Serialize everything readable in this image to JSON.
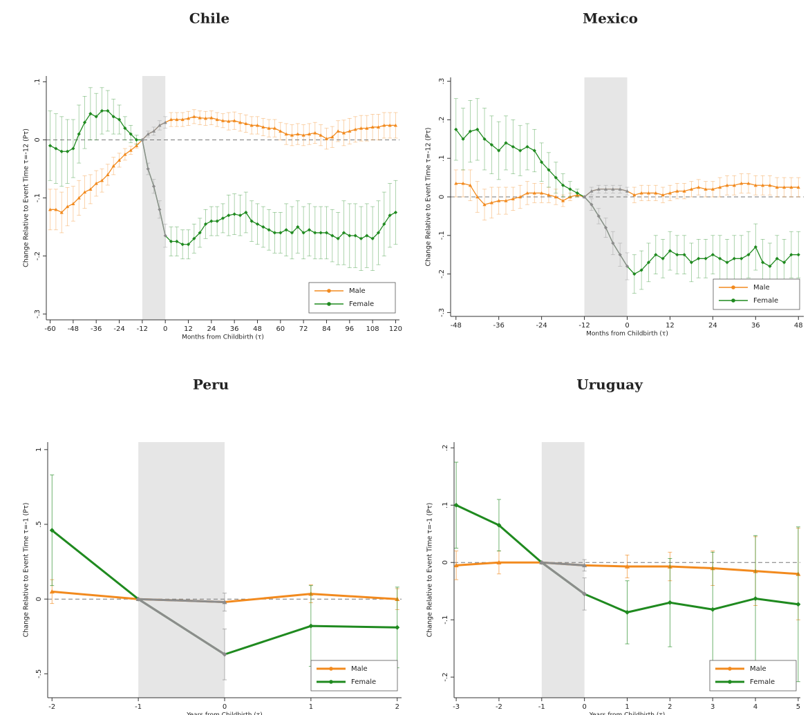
{
  "chart_data": [
    {
      "type": "line",
      "title": "Chile",
      "xlabel": "Months from Childbirth (τ)",
      "ylabel": "Change Relative to Event Time τ=-12 (Pτ)",
      "x": [
        -60,
        -57,
        -54,
        -51,
        -48,
        -45,
        -42,
        -39,
        -36,
        -33,
        -30,
        -27,
        -24,
        -21,
        -18,
        -15,
        -12,
        -9,
        -6,
        -3,
        0,
        3,
        6,
        9,
        12,
        15,
        18,
        21,
        24,
        27,
        30,
        33,
        36,
        39,
        42,
        45,
        48,
        51,
        54,
        57,
        60,
        63,
        66,
        69,
        72,
        75,
        78,
        81,
        84,
        87,
        90,
        93,
        96,
        99,
        102,
        105,
        108,
        111,
        114,
        117,
        120
      ],
      "series": [
        {
          "name": "Male",
          "color": "#f28a1e",
          "marker": "triangle",
          "values": [
            -0.12,
            -0.12,
            -0.125,
            -0.115,
            -0.11,
            -0.1,
            -0.09,
            -0.085,
            -0.075,
            -0.07,
            -0.06,
            -0.045,
            -0.035,
            -0.025,
            -0.018,
            -0.01,
            0,
            0.01,
            0.015,
            0.025,
            0.03,
            0.035,
            0.035,
            0.035,
            0.037,
            0.04,
            0.038,
            0.037,
            0.038,
            0.035,
            0.033,
            0.032,
            0.033,
            0.03,
            0.028,
            0.025,
            0.025,
            0.022,
            0.02,
            0.02,
            0.015,
            0.01,
            0.008,
            0.01,
            0.008,
            0.01,
            0.012,
            0.008,
            0.002,
            0.005,
            0.015,
            0.012,
            0.015,
            0.018,
            0.02,
            0.02,
            0.022,
            0.022,
            0.025,
            0.025,
            0.025
          ],
          "errors": [
            0.035,
            0.035,
            0.035,
            0.033,
            0.03,
            0.03,
            0.028,
            0.025,
            0.022,
            0.02,
            0.018,
            0.015,
            0.012,
            0.01,
            0.007,
            0.004,
            0,
            0.005,
            0.007,
            0.008,
            0.01,
            0.012,
            0.012,
            0.012,
            0.012,
            0.012,
            0.012,
            0.012,
            0.012,
            0.012,
            0.012,
            0.015,
            0.015,
            0.015,
            0.015,
            0.015,
            0.015,
            0.015,
            0.015,
            0.015,
            0.015,
            0.018,
            0.018,
            0.018,
            0.018,
            0.018,
            0.018,
            0.018,
            0.018,
            0.018,
            0.018,
            0.022,
            0.022,
            0.022,
            0.022,
            0.022,
            0.022,
            0.022,
            0.022,
            0.022,
            0.022
          ]
        },
        {
          "name": "Female",
          "color": "#1f8a1f",
          "marker": "diamond",
          "values": [
            -0.01,
            -0.015,
            -0.02,
            -0.02,
            -0.015,
            0.01,
            0.03,
            0.045,
            0.04,
            0.05,
            0.05,
            0.04,
            0.035,
            0.02,
            0.01,
            0,
            0,
            -0.05,
            -0.08,
            -0.12,
            -0.165,
            -0.175,
            -0.175,
            -0.18,
            -0.18,
            -0.17,
            -0.16,
            -0.145,
            -0.14,
            -0.14,
            -0.135,
            -0.13,
            -0.128,
            -0.13,
            -0.125,
            -0.14,
            -0.145,
            -0.15,
            -0.155,
            -0.16,
            -0.16,
            -0.155,
            -0.16,
            -0.15,
            -0.16,
            -0.155,
            -0.16,
            -0.16,
            -0.16,
            -0.165,
            -0.17,
            -0.16,
            -0.165,
            -0.165,
            -0.17,
            -0.165,
            -0.17,
            -0.16,
            -0.145,
            -0.13,
            -0.125
          ],
          "errors": [
            0.06,
            0.06,
            0.06,
            0.055,
            0.05,
            0.05,
            0.045,
            0.045,
            0.04,
            0.04,
            0.035,
            0.03,
            0.025,
            0.02,
            0.015,
            0.008,
            0,
            0.01,
            0.012,
            0.015,
            0.02,
            0.025,
            0.025,
            0.025,
            0.025,
            0.025,
            0.025,
            0.025,
            0.025,
            0.025,
            0.025,
            0.035,
            0.035,
            0.035,
            0.035,
            0.035,
            0.035,
            0.035,
            0.035,
            0.035,
            0.035,
            0.045,
            0.045,
            0.045,
            0.045,
            0.045,
            0.045,
            0.045,
            0.045,
            0.045,
            0.045,
            0.055,
            0.055,
            0.055,
            0.055,
            0.055,
            0.055,
            0.055,
            0.055,
            0.055,
            0.055
          ]
        }
      ],
      "xlim": [
        -62,
        122
      ],
      "xticks": [
        -60,
        -48,
        -36,
        -24,
        -12,
        0,
        12,
        24,
        36,
        48,
        60,
        72,
        84,
        96,
        108,
        120
      ],
      "ylim": [
        -0.31,
        0.11
      ],
      "yticks": [
        {
          "value": -0.3,
          "label": "-.3"
        },
        {
          "value": -0.2,
          "label": "-.2"
        },
        {
          "value": -0.1,
          "label": "-.1"
        },
        0,
        {
          "value": 0.1,
          "label": ".1"
        }
      ],
      "shade": [
        -12,
        0
      ],
      "shade_color": "#e6e6e6",
      "shade_series_color": "#8c8c8c",
      "hline": 0,
      "legend": "lower right"
    },
    {
      "type": "line",
      "title": "Mexico",
      "xlabel": "Months from Childbirth (τ)",
      "ylabel": "Change Relative to Event Time τ=-12 (Pτ)",
      "x": [
        -48,
        -46,
        -44,
        -42,
        -40,
        -38,
        -36,
        -34,
        -32,
        -30,
        -28,
        -26,
        -24,
        -22,
        -20,
        -18,
        -16,
        -14,
        -12,
        -10,
        -8,
        -6,
        -4,
        -2,
        0,
        2,
        4,
        6,
        8,
        10,
        12,
        14,
        16,
        18,
        20,
        22,
        24,
        26,
        28,
        30,
        32,
        34,
        36,
        38,
        40,
        42,
        44,
        46,
        48
      ],
      "series": [
        {
          "name": "Male",
          "color": "#f28a1e",
          "marker": "triangle",
          "values": [
            0.035,
            0.035,
            0.03,
            0,
            -0.02,
            -0.015,
            -0.01,
            -0.01,
            -0.005,
            0,
            0.01,
            0.01,
            0.01,
            0.005,
            0,
            -0.01,
            0,
            0.005,
            0,
            0.015,
            0.02,
            0.02,
            0.02,
            0.02,
            0.015,
            0.005,
            0.01,
            0.01,
            0.01,
            0.005,
            0.01,
            0.015,
            0.015,
            0.02,
            0.025,
            0.02,
            0.02,
            0.025,
            0.03,
            0.03,
            0.035,
            0.035,
            0.03,
            0.03,
            0.03,
            0.025,
            0.025,
            0.025,
            0.025
          ],
          "errors": [
            0.035,
            0.035,
            0.04,
            0.04,
            0.04,
            0.04,
            0.035,
            0.035,
            0.03,
            0.03,
            0.03,
            0.025,
            0.025,
            0.02,
            0.02,
            0.015,
            0.01,
            0.005,
            0,
            0.01,
            0.01,
            0.01,
            0.01,
            0.01,
            0.01,
            0.02,
            0.02,
            0.02,
            0.02,
            0.02,
            0.02,
            0.02,
            0.02,
            0.02,
            0.02,
            0.02,
            0.02,
            0.025,
            0.025,
            0.025,
            0.025,
            0.025,
            0.025,
            0.025,
            0.025,
            0.025,
            0.025,
            0.025,
            0.025
          ]
        },
        {
          "name": "Female",
          "color": "#1f8a1f",
          "marker": "diamond",
          "values": [
            0.175,
            0.15,
            0.17,
            0.175,
            0.15,
            0.135,
            0.12,
            0.14,
            0.13,
            0.12,
            0.13,
            0.12,
            0.09,
            0.07,
            0.05,
            0.03,
            0.02,
            0.01,
            0,
            -0.02,
            -0.05,
            -0.08,
            -0.12,
            -0.15,
            -0.18,
            -0.2,
            -0.19,
            -0.17,
            -0.15,
            -0.16,
            -0.14,
            -0.15,
            -0.15,
            -0.17,
            -0.16,
            -0.16,
            -0.15,
            -0.16,
            -0.17,
            -0.16,
            -0.16,
            -0.15,
            -0.13,
            -0.17,
            -0.18,
            -0.16,
            -0.17,
            -0.15,
            -0.15
          ],
          "errors": [
            0.08,
            0.08,
            0.08,
            0.08,
            0.08,
            0.075,
            0.075,
            0.07,
            0.07,
            0.065,
            0.06,
            0.055,
            0.05,
            0.045,
            0.04,
            0.03,
            0.02,
            0.01,
            0,
            0.015,
            0.02,
            0.025,
            0.03,
            0.03,
            0.035,
            0.05,
            0.05,
            0.05,
            0.05,
            0.05,
            0.05,
            0.05,
            0.05,
            0.05,
            0.05,
            0.05,
            0.05,
            0.06,
            0.06,
            0.06,
            0.06,
            0.06,
            0.06,
            0.06,
            0.06,
            0.06,
            0.06,
            0.06,
            0.06
          ]
        }
      ],
      "xlim": [
        -49.5,
        49.5
      ],
      "xticks": [
        -48,
        -36,
        -24,
        -12,
        0,
        12,
        24,
        36,
        48
      ],
      "ylim": [
        -0.31,
        0.31
      ],
      "yticks": [
        {
          "value": -0.3,
          "label": "-.3"
        },
        {
          "value": -0.2,
          "label": "-.2"
        },
        {
          "value": -0.1,
          "label": "-.1"
        },
        0,
        {
          "value": 0.1,
          "label": ".1"
        },
        {
          "value": 0.2,
          "label": ".2"
        },
        {
          "value": 0.3,
          "label": ".3"
        }
      ],
      "shade": [
        -12,
        0
      ],
      "shade_color": "#e6e6e6",
      "shade_series_color": "#8c8c8c",
      "hline": 0,
      "legend": "lower right"
    },
    {
      "type": "line",
      "title": "Peru",
      "xlabel": "Years from Childbirth (τ)",
      "ylabel": "Change Relative to Event Time τ=-1 (Pτ)",
      "x": [
        -2,
        -1,
        0,
        1,
        2
      ],
      "series": [
        {
          "name": "Male",
          "color": "#f28a1e",
          "marker": "triangle",
          "values": [
            0.05,
            0,
            -0.02,
            0.035,
            0
          ],
          "errors": [
            0.08,
            0,
            0.06,
            0.06,
            0.07
          ]
        },
        {
          "name": "Female",
          "color": "#1f8a1f",
          "marker": "diamond",
          "values": [
            0.46,
            0,
            -0.37,
            -0.18,
            -0.19
          ],
          "errors": [
            0.37,
            0,
            0.17,
            0.27,
            0.27
          ]
        }
      ],
      "xlim": [
        -2.05,
        2.05
      ],
      "xticks": [
        -2,
        -1,
        0,
        1,
        2
      ],
      "ylim": [
        -0.66,
        1.05
      ],
      "yticks": [
        {
          "value": -0.5,
          "label": "-.5"
        },
        0,
        {
          "value": 0.5,
          "label": ".5"
        },
        1
      ],
      "shade": [
        -1,
        0
      ],
      "shade_color": "#e6e6e6",
      "shade_series_color": "#8c8c8c",
      "hline": 0,
      "legend": "lower right"
    },
    {
      "type": "line",
      "title": "Uruguay",
      "xlabel": "Years from Childbirth (τ)",
      "ylabel": "Change Relative to Event Time τ=-1 (Pτ)",
      "x": [
        -3,
        -2,
        -1,
        0,
        1,
        2,
        3,
        4,
        5
      ],
      "series": [
        {
          "name": "Male",
          "color": "#f28a1e",
          "marker": "triangle",
          "values": [
            -0.005,
            0,
            0,
            -0.005,
            -0.007,
            -0.007,
            -0.01,
            -0.015,
            -0.02
          ],
          "errors": [
            0.025,
            0.02,
            0,
            0.01,
            0.02,
            0.025,
            0.03,
            0.06,
            0.08
          ]
        },
        {
          "name": "Female",
          "color": "#1f8a1f",
          "marker": "diamond",
          "values": [
            0.1,
            0.065,
            0,
            -0.055,
            -0.087,
            -0.07,
            -0.082,
            -0.063,
            -0.073
          ],
          "errors": [
            0.075,
            0.045,
            0,
            0.028,
            0.055,
            0.077,
            0.1,
            0.11,
            0.135
          ]
        }
      ],
      "xlim": [
        -3.05,
        5.05
      ],
      "xticks": [
        -3,
        -2,
        -1,
        0,
        1,
        2,
        3,
        4,
        5
      ],
      "ylim": [
        -0.236,
        0.21
      ],
      "yticks": [
        {
          "value": -0.2,
          "label": "-.2"
        },
        {
          "value": -0.1,
          "label": "-.1"
        },
        0,
        {
          "value": 0.1,
          "label": ".1"
        },
        {
          "value": 0.2,
          "label": ".2"
        }
      ],
      "shade": [
        -1,
        0
      ],
      "shade_color": "#e6e6e6",
      "shade_series_color": "#8c8c8c",
      "hline": 0,
      "legend": "lower right"
    }
  ]
}
